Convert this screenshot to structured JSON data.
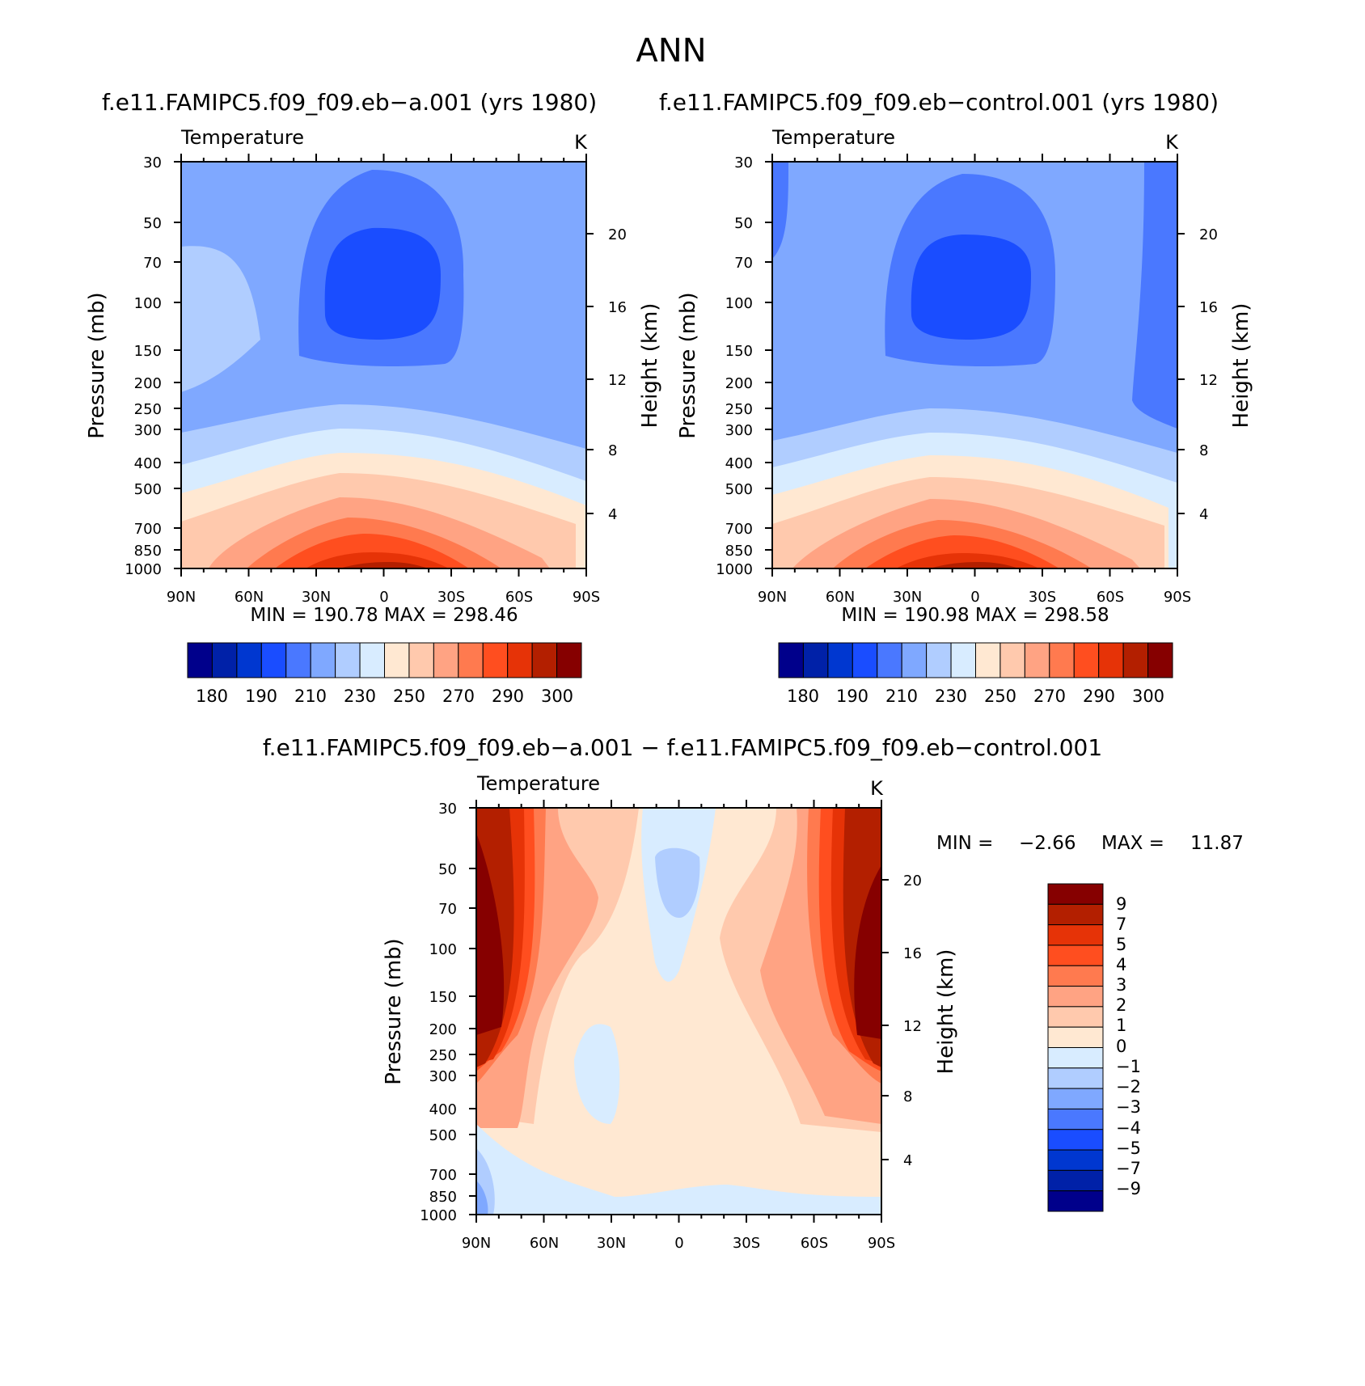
{
  "figure_title": "ANN",
  "colors": {
    "abs_levels": [
      "#00008b",
      "#0021a8",
      "#0037d0",
      "#1a4dff",
      "#4a78ff",
      "#7fa8ff",
      "#b0cdff",
      "#d8ecff",
      "#ffe8d2",
      "#ffc9ad",
      "#ffa383",
      "#ff7a4f",
      "#ff4e1f",
      "#e63307",
      "#b31f00",
      "#860000"
    ],
    "diff_levels": [
      "#00008b",
      "#0021a8",
      "#0037d0",
      "#1a4dff",
      "#4a78ff",
      "#7fa8ff",
      "#b0cdff",
      "#d8ecff",
      "#ffe8d2",
      "#ffc9ad",
      "#ffa383",
      "#ff7a4f",
      "#ff4e1f",
      "#e63307",
      "#b31f00",
      "#860000"
    ]
  },
  "chart_data": [
    {
      "type": "heatmap",
      "id": "panel-a",
      "title": "f.e11.FAMIPC5.f09_f09.eb−a.001 (yrs 1980)",
      "variable": "Temperature",
      "units": "K",
      "xlabel": "",
      "ylabel": "Pressure (mb)",
      "y2label": "Height (km)",
      "x_ticks": [
        "90N",
        "60N",
        "30N",
        "0",
        "30S",
        "60S",
        "90S"
      ],
      "y_ticks": [
        "30",
        "50",
        "70",
        "100",
        "150",
        "200",
        "250",
        "300",
        "400",
        "500",
        "700",
        "850",
        "1000"
      ],
      "y2_ticks": [
        "20",
        "16",
        "12",
        "8",
        "4"
      ],
      "stats": "MIN = 190.78 MAX = 298.46",
      "colorbar": {
        "orientation": "horizontal",
        "labels": [
          "180",
          "190",
          "210",
          "230",
          "250",
          "270",
          "290",
          "300"
        ],
        "levels": 16
      },
      "approx_field": {
        "surface_equator_max_K": 298.46,
        "tropopause_min_K": 190.78
      }
    },
    {
      "type": "heatmap",
      "id": "panel-control",
      "title": "f.e11.FAMIPC5.f09_f09.eb−control.001 (yrs 1980)",
      "variable": "Temperature",
      "units": "K",
      "xlabel": "",
      "ylabel": "Pressure (mb)",
      "y2label": "Height (km)",
      "x_ticks": [
        "90N",
        "60N",
        "30N",
        "0",
        "30S",
        "60S",
        "90S"
      ],
      "y_ticks": [
        "30",
        "50",
        "70",
        "100",
        "150",
        "200",
        "250",
        "300",
        "400",
        "500",
        "700",
        "850",
        "1000"
      ],
      "y2_ticks": [
        "20",
        "16",
        "12",
        "8",
        "4"
      ],
      "stats": "MIN = 190.98 MAX = 298.58",
      "colorbar": {
        "orientation": "horizontal",
        "labels": [
          "180",
          "190",
          "210",
          "230",
          "250",
          "270",
          "290",
          "300"
        ],
        "levels": 16
      },
      "approx_field": {
        "surface_equator_max_K": 298.58,
        "tropopause_min_K": 190.98
      }
    },
    {
      "type": "heatmap",
      "id": "panel-diff",
      "title": "f.e11.FAMIPC5.f09_f09.eb−a.001 − f.e11.FAMIPC5.f09_f09.eb−control.001",
      "variable": "Temperature",
      "units": "K",
      "xlabel": "",
      "ylabel": "Pressure (mb)",
      "y2label": "Height (km)",
      "x_ticks": [
        "90N",
        "60N",
        "30N",
        "0",
        "30S",
        "60S",
        "90S"
      ],
      "y_ticks": [
        "30",
        "50",
        "70",
        "100",
        "150",
        "200",
        "250",
        "300",
        "400",
        "500",
        "700",
        "850",
        "1000"
      ],
      "y2_ticks": [
        "20",
        "16",
        "12",
        "8",
        "4"
      ],
      "stats_min_label": "MIN =",
      "stats_min": "−2.66",
      "stats_max_label": "MAX =",
      "stats_max": "11.87",
      "colorbar": {
        "orientation": "vertical",
        "labels": [
          "9",
          "7",
          "5",
          "4",
          "3",
          "2",
          "1",
          "0",
          "−1",
          "−2",
          "−3",
          "−4",
          "−5",
          "−7",
          "−9"
        ],
        "levels": 16
      },
      "approx_field": {
        "polar_upper_max_K": 11.87,
        "min_K": -2.66
      }
    }
  ]
}
